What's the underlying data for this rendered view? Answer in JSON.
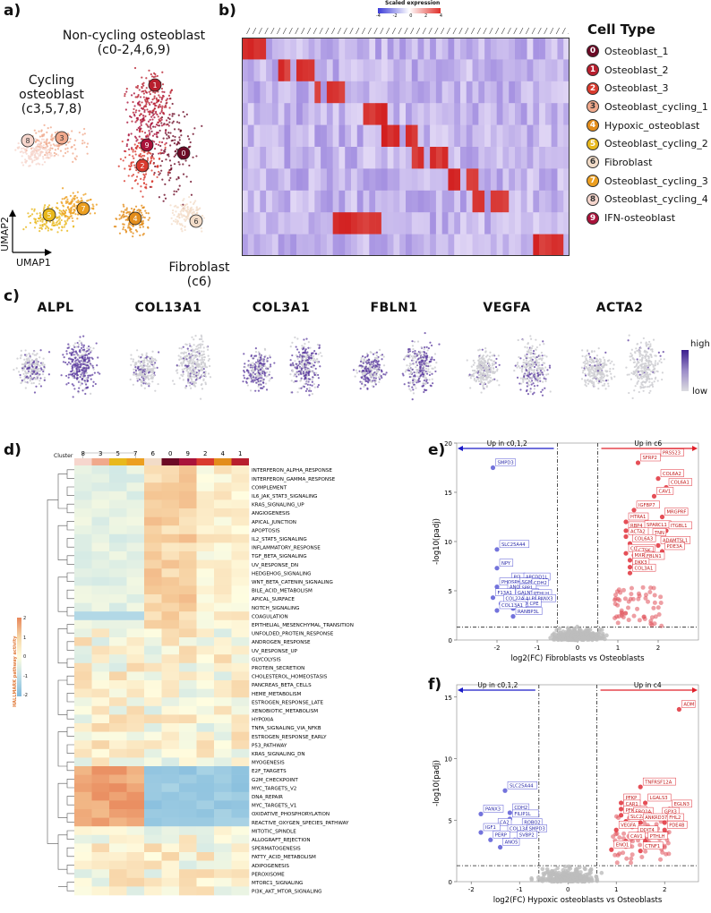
{
  "panels": {
    "a": "a)",
    "b": "b)",
    "c": "c)",
    "d": "d)",
    "e": "e)",
    "f": "f)"
  },
  "umap": {
    "noncycling_title": "Non-cycling osteoblast",
    "noncycling_sub": "(c0-2,4,6,9)",
    "cycling_title": "Cycling osteoblast",
    "cycling_sub": "(c3,5,7,8)",
    "fibro_title": "Fibroblast",
    "fibro_sub": "(c6)",
    "axis_x": "UMAP1",
    "axis_y": "UMAP2",
    "cluster_marks": [
      "0",
      "1",
      "2",
      "3",
      "4",
      "5",
      "6",
      "7",
      "8",
      "9"
    ]
  },
  "heatmap": {
    "scale_title": "Scaled expression",
    "scale_ticks": [
      "-4",
      "-2",
      "0",
      "2",
      "4"
    ],
    "legend_title": "Cell Type",
    "cell_types": [
      {
        "id": "0",
        "name": "Osteoblast_1",
        "color": "#6b0a25"
      },
      {
        "id": "1",
        "name": "Osteoblast_2",
        "color": "#b81f2e"
      },
      {
        "id": "2",
        "name": "Osteoblast_3",
        "color": "#d93a2e"
      },
      {
        "id": "3",
        "name": "Osteoblast_cycling_1",
        "color": "#f0a98c"
      },
      {
        "id": "4",
        "name": "Hypoxic_osteoblast",
        "color": "#e38d1c"
      },
      {
        "id": "5",
        "name": "Osteoblast_cycling_2",
        "color": "#e8b81c"
      },
      {
        "id": "6",
        "name": "Fibroblast",
        "color": "#f2dcc8"
      },
      {
        "id": "7",
        "name": "Osteoblast_cycling_3",
        "color": "#ec9f20"
      },
      {
        "id": "8",
        "name": "Osteoblast_cycling_4",
        "color": "#f6d6cd"
      },
      {
        "id": "9",
        "name": "IFN-osteoblast",
        "color": "#a9123a"
      }
    ]
  },
  "features": {
    "genes": [
      "ALPL",
      "COL13A1",
      "COL3A1",
      "FBLN1",
      "VEGFA",
      "ACTA2"
    ],
    "scale_high": "high",
    "scale_low": "low"
  },
  "pathway": {
    "legend_title": "HALLMARK pathway activity",
    "legend_ticks": [
      "2",
      "1",
      "0",
      "-1",
      "-2"
    ],
    "cluster_label": "Cluster",
    "clusters": [
      "8",
      "3",
      "5",
      "7",
      "6",
      "0",
      "9",
      "2",
      "4",
      "1"
    ],
    "pathways": [
      "INTERFERON_ALPHA_RESPONSE",
      "INTERFERON_GAMMA_RESPONSE",
      "COMPLEMENT",
      "IL6_JAK_STAT3_SIGNALING",
      "KRAS_SIGNALING_UP",
      "ANGIOGENESIS",
      "APICAL_JUNCTION",
      "APOPTOSIS",
      "IL2_STAT5_SIGNALING",
      "INFLAMMATORY_RESPONSE",
      "TGF_BETA_SIGNALING",
      "UV_RESPONSE_DN",
      "HEDGEHOG_SIGNALING",
      "WNT_BETA_CATENIN_SIGNALING",
      "BILE_ACID_METABOLISM",
      "APICAL_SURFACE",
      "NOTCH_SIGNALING",
      "COAGULATION",
      "EPITHELIAL_MESENCHYMAL_TRANSITION",
      "UNFOLDED_PROTEIN_RESPONSE",
      "ANDROGEN_RESPONSE",
      "UV_RESPONSE_UP",
      "GLYCOLYSIS",
      "PROTEIN_SECRETION",
      "CHOLESTEROL_HOMEOSTASIS",
      "PANCREAS_BETA_CELLS",
      "HEME_METABOLISM",
      "ESTROGEN_RESPONSE_LATE",
      "XENOBIOTIC_METABOLISM",
      "HYPOXIA",
      "TNFA_SIGNALING_VIA_NFKB",
      "ESTROGEN_RESPONSE_EARLY",
      "P53_PATHWAY",
      "KRAS_SIGNALING_DN",
      "MYOGENESIS",
      "E2F_TARGETS",
      "G2M_CHECKPOINT",
      "MYC_TARGETS_V2",
      "DNA_REPAIR",
      "MYC_TARGETS_V1",
      "OXIDATIVE_PHOSPHORYLATION",
      "REACTIVE_OXYGEN_SPECIES_PATHWAY",
      "MITOTIC_SPINDLE",
      "ALLOGRAFT_REJECTION",
      "SPERMATOGENESIS",
      "FATTY_ACID_METABOLISM",
      "ADIPOGENESIS",
      "PEROXISOME",
      "MTORC1_SIGNALING",
      "PI3K_AKT_MTOR_SIGNALING"
    ]
  },
  "chart_data": [
    {
      "type": "scatter",
      "title": "Fibroblasts vs Osteoblasts",
      "xlabel": "log2(FC) Fibroblasts vs Osteoblasts",
      "ylabel": "-log10(padj)",
      "xlim": [
        -3,
        3
      ],
      "ylim": [
        0,
        20
      ],
      "xticks": [
        "-2",
        "-1",
        "0",
        "1",
        "2"
      ],
      "yticks": [
        "0",
        "5",
        "10",
        "15",
        "20"
      ],
      "left_arrow": "Up in c0,1,2",
      "right_arrow": "Up in c6",
      "thresholds": {
        "x": [
          -0.5,
          0.5
        ],
        "y": 1.3
      },
      "down_genes": [
        {
          "label": "SMPD3",
          "x": -2.1,
          "y": 17.5
        },
        {
          "label": "SLC25A44",
          "x": -2.0,
          "y": 9.2
        },
        {
          "label": "NPY",
          "x": -2.0,
          "y": 7.3
        },
        {
          "label": "PI3",
          "x": -1.7,
          "y": 5.9
        },
        {
          "label": "APCDD1L",
          "x": -1.4,
          "y": 5.9
        },
        {
          "label": "PHOSPHO1",
          "x": -2.0,
          "y": 5.4
        },
        {
          "label": "SGMS2",
          "x": -1.5,
          "y": 5.4
        },
        {
          "label": "CDH2",
          "x": -1.2,
          "y": 5.3
        },
        {
          "label": "ANO5",
          "x": -1.8,
          "y": 4.9
        },
        {
          "label": "SPP1",
          "x": -1.5,
          "y": 4.8
        },
        {
          "label": "F13A1",
          "x": -2.1,
          "y": 4.3
        },
        {
          "label": "GALNT2",
          "x": -1.6,
          "y": 4.3
        },
        {
          "label": "PTHLH",
          "x": -1.2,
          "y": 4.2
        },
        {
          "label": "COL22A1",
          "x": -1.9,
          "y": 3.7
        },
        {
          "label": "ALPL",
          "x": -1.4,
          "y": 3.7
        },
        {
          "label": "PANX3",
          "x": -1.1,
          "y": 3.7
        },
        {
          "label": "CADM1",
          "x": -1.6,
          "y": 3.2
        },
        {
          "label": "CPE",
          "x": -1.3,
          "y": 3.2
        },
        {
          "label": "COL13A1",
          "x": -2.0,
          "y": 3.0
        },
        {
          "label": "RANBP3L",
          "x": -1.6,
          "y": 2.4
        }
      ],
      "up_genes": [
        {
          "label": "PRSS23",
          "x": 2.0,
          "y": 18.5
        },
        {
          "label": "SFRP2",
          "x": 1.5,
          "y": 18.0
        },
        {
          "label": "COL6A2",
          "x": 2.0,
          "y": 16.4
        },
        {
          "label": "COL6A1",
          "x": 2.2,
          "y": 15.5
        },
        {
          "label": "CAV1",
          "x": 1.9,
          "y": 14.6
        },
        {
          "label": "IGFBP7",
          "x": 1.4,
          "y": 13.2
        },
        {
          "label": "MRGPRF",
          "x": 2.1,
          "y": 12.5
        },
        {
          "label": "HTRA1",
          "x": 1.2,
          "y": 12.0
        },
        {
          "label": "RBP4",
          "x": 1.2,
          "y": 11.1
        },
        {
          "label": "SPARCL1",
          "x": 1.6,
          "y": 11.2
        },
        {
          "label": "ITGBL1",
          "x": 2.2,
          "y": 11.1
        },
        {
          "label": "ACTA2",
          "x": 1.2,
          "y": 10.5
        },
        {
          "label": "TNN",
          "x": 1.8,
          "y": 10.4
        },
        {
          "label": "COL6A3",
          "x": 1.3,
          "y": 9.8
        },
        {
          "label": "ADAMTSL1",
          "x": 2.0,
          "y": 9.6
        },
        {
          "label": "PDE3A",
          "x": 2.1,
          "y": 9.0
        },
        {
          "label": "COL12A1",
          "x": 1.2,
          "y": 8.8
        },
        {
          "label": "CTSK",
          "x": 1.4,
          "y": 8.6
        },
        {
          "label": "MXRA5",
          "x": 1.3,
          "y": 8.1
        },
        {
          "label": "FBLN1",
          "x": 1.6,
          "y": 8.0
        },
        {
          "label": "DKK3",
          "x": 1.3,
          "y": 7.4
        },
        {
          "label": "COL3A1",
          "x": 1.3,
          "y": 6.8
        }
      ]
    },
    {
      "type": "scatter",
      "title": "Hypoxic osteoblasts vs Osteoblasts",
      "xlabel": "log2(FC) Hypoxic osteoblasts vs Osteoblasts",
      "ylabel": "-log10(padj)",
      "xlim": [
        -2.3,
        2.7
      ],
      "ylim": [
        0,
        16
      ],
      "xticks": [
        "-2",
        "-1",
        "0",
        "1",
        "2"
      ],
      "yticks": [
        "0",
        "5",
        "10",
        "15"
      ],
      "left_arrow": "Up in c0,1,2",
      "right_arrow": "Up in c4",
      "thresholds": {
        "x": [
          -0.6,
          0.6
        ],
        "y": 1.3
      },
      "down_genes": [
        {
          "label": "SLC25A44",
          "x": -1.3,
          "y": 7.4
        },
        {
          "label": "CDH2",
          "x": -1.2,
          "y": 5.6
        },
        {
          "label": "PANX3",
          "x": -1.8,
          "y": 5.5
        },
        {
          "label": "FILIP1L",
          "x": -1.2,
          "y": 5.1
        },
        {
          "label": "CA2",
          "x": -1.5,
          "y": 4.4
        },
        {
          "label": "ROBO2",
          "x": -1.0,
          "y": 4.4
        },
        {
          "label": "IGF1",
          "x": -1.8,
          "y": 4.0
        },
        {
          "label": "COL13A1",
          "x": -1.3,
          "y": 3.9
        },
        {
          "label": "SMPD3",
          "x": -0.9,
          "y": 3.9
        },
        {
          "label": "PERP",
          "x": -1.6,
          "y": 3.4
        },
        {
          "label": "SVBP2",
          "x": -1.1,
          "y": 3.4
        },
        {
          "label": "ANO5",
          "x": -1.4,
          "y": 2.8
        }
      ],
      "up_genes": [
        {
          "label": "ADM",
          "x": 2.3,
          "y": 14.0
        },
        {
          "label": "TNFRSF12A",
          "x": 1.5,
          "y": 7.7
        },
        {
          "label": "PFKP",
          "x": 1.1,
          "y": 6.4
        },
        {
          "label": "LGALS3",
          "x": 1.6,
          "y": 6.4
        },
        {
          "label": "CAR1",
          "x": 1.1,
          "y": 5.9
        },
        {
          "label": "EGLN3",
          "x": 2.1,
          "y": 5.9
        },
        {
          "label": "PFKFB3",
          "x": 1.1,
          "y": 5.4
        },
        {
          "label": "ERO1A",
          "x": 1.3,
          "y": 5.3
        },
        {
          "label": "GPX3",
          "x": 1.9,
          "y": 5.3
        },
        {
          "label": "SLC2A1",
          "x": 1.2,
          "y": 4.9
        },
        {
          "label": "ANKRD37",
          "x": 1.5,
          "y": 4.8
        },
        {
          "label": "FHL2",
          "x": 2.0,
          "y": 4.8
        },
        {
          "label": "VEGFA",
          "x": 1.0,
          "y": 4.2
        },
        {
          "label": "PDE4B",
          "x": 2.0,
          "y": 4.2
        },
        {
          "label": "DDIT4",
          "x": 1.4,
          "y": 3.8
        },
        {
          "label": "CAV1",
          "x": 1.2,
          "y": 3.3
        },
        {
          "label": "PTHLH",
          "x": 1.6,
          "y": 3.3
        },
        {
          "label": "ENO1",
          "x": 0.9,
          "y": 2.6
        },
        {
          "label": "CTNF1",
          "x": 1.5,
          "y": 2.5
        }
      ]
    }
  ]
}
